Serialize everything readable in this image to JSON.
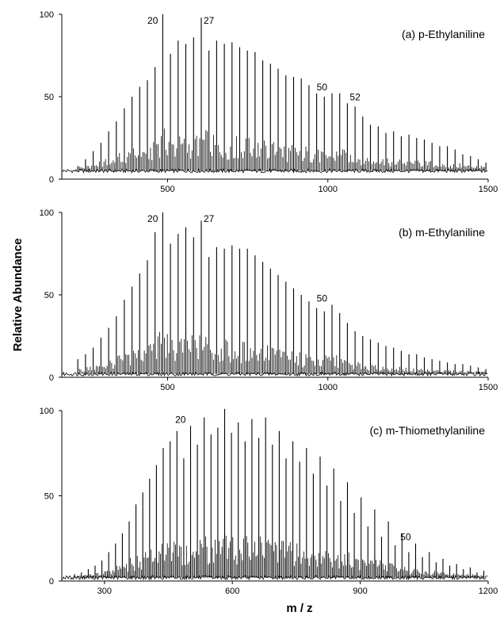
{
  "figure": {
    "ylabel": "Relative Abundance",
    "xlabel": "m / z"
  },
  "chart_data": [
    {
      "type": "bar",
      "title": "(a) p-Ethylaniline",
      "xlim": [
        170,
        1500
      ],
      "ylim": [
        0,
        100
      ],
      "xticks": [
        500,
        1000,
        1500
      ],
      "yticks": [
        0,
        50,
        100
      ],
      "baseline": 5,
      "peaks": {
        "x": [
          220,
          244,
          268,
          292,
          316,
          340,
          365,
          389,
          413,
          437,
          461,
          485,
          509,
          533,
          557,
          581,
          605,
          629,
          653,
          677,
          701,
          725,
          749,
          773,
          797,
          821,
          845,
          869,
          893,
          917,
          941,
          965,
          989,
          1013,
          1037,
          1061,
          1085,
          1109,
          1133,
          1157,
          1181,
          1205,
          1229,
          1253,
          1277,
          1301,
          1325,
          1349,
          1373,
          1397,
          1421,
          1445,
          1469,
          1493
        ],
        "y": [
          8,
          12,
          17,
          22,
          29,
          35,
          43,
          50,
          56,
          60,
          68,
          100,
          76,
          84,
          82,
          86,
          98,
          78,
          84,
          82,
          83,
          80,
          78,
          77,
          72,
          70,
          67,
          63,
          62,
          61,
          57,
          52,
          50,
          52,
          52,
          46,
          44,
          38,
          33,
          32,
          28,
          29,
          26,
          27,
          25,
          24,
          22,
          20,
          20,
          18,
          15,
          14,
          12,
          10
        ]
      },
      "annotations": [
        {
          "text": "20",
          "x": 485
        },
        {
          "text": "27",
          "x": 605
        },
        {
          "text": "50",
          "x": 1013
        },
        {
          "text": "52",
          "x": 1061
        }
      ]
    },
    {
      "type": "bar",
      "title": "(b) m-Ethylaniline",
      "xlim": [
        170,
        1500
      ],
      "ylim": [
        0,
        100
      ],
      "xticks": [
        500,
        1000,
        1500
      ],
      "yticks": [
        0,
        50,
        100
      ],
      "baseline": 2,
      "peaks": {
        "x": [
          220,
          244,
          268,
          292,
          316,
          340,
          365,
          389,
          413,
          437,
          461,
          485,
          509,
          533,
          557,
          581,
          605,
          629,
          653,
          677,
          701,
          725,
          749,
          773,
          797,
          821,
          845,
          869,
          893,
          917,
          941,
          965,
          989,
          1013,
          1037,
          1061,
          1085,
          1109,
          1133,
          1157,
          1181,
          1205,
          1229,
          1253,
          1277,
          1301,
          1325,
          1349,
          1373,
          1397,
          1421,
          1445,
          1469,
          1493
        ],
        "y": [
          11,
          14,
          18,
          24,
          30,
          37,
          47,
          55,
          63,
          71,
          88,
          100,
          81,
          87,
          91,
          85,
          95,
          73,
          79,
          78,
          80,
          78,
          78,
          74,
          70,
          66,
          62,
          58,
          54,
          50,
          46,
          42,
          40,
          44,
          39,
          33,
          28,
          25,
          23,
          21,
          19,
          18,
          16,
          14,
          14,
          12,
          11,
          10,
          9,
          8,
          8,
          7,
          6,
          5
        ]
      },
      "annotations": [
        {
          "text": "20",
          "x": 485
        },
        {
          "text": "27",
          "x": 605
        },
        {
          "text": "50",
          "x": 1013
        }
      ]
    },
    {
      "type": "bar",
      "title": "(c) m-Thiomethylaniline",
      "xlim": [
        200,
        1200
      ],
      "ylim": [
        0,
        100
      ],
      "xticks": [
        300,
        600,
        900,
        1200
      ],
      "yticks": [
        0,
        50,
        100
      ],
      "baseline": 2,
      "peaks": {
        "x": [
          230,
          246,
          262,
          278,
          294,
          310,
          326,
          342,
          358,
          374,
          390,
          406,
          422,
          438,
          454,
          470,
          486,
          502,
          518,
          534,
          550,
          566,
          582,
          598,
          614,
          630,
          646,
          662,
          678,
          694,
          710,
          726,
          742,
          758,
          774,
          790,
          806,
          822,
          838,
          854,
          870,
          886,
          902,
          918,
          934,
          950,
          966,
          982,
          998,
          1014,
          1030,
          1046,
          1062,
          1078,
          1094,
          1110,
          1126,
          1142,
          1158,
          1174,
          1190
        ],
        "y": [
          4,
          5,
          7,
          9,
          12,
          17,
          22,
          28,
          35,
          45,
          52,
          60,
          68,
          78,
          82,
          88,
          72,
          91,
          80,
          96,
          86,
          90,
          101,
          87,
          93,
          82,
          95,
          84,
          96,
          80,
          88,
          72,
          82,
          70,
          78,
          63,
          73,
          56,
          66,
          47,
          58,
          40,
          49,
          32,
          42,
          26,
          35,
          21,
          28,
          17,
          22,
          14,
          17,
          11,
          13,
          9,
          10,
          7,
          8,
          5,
          6
        ]
      },
      "annotations": [
        {
          "text": "20",
          "x": 502
        },
        {
          "text": "50",
          "x": 1030
        }
      ]
    }
  ]
}
